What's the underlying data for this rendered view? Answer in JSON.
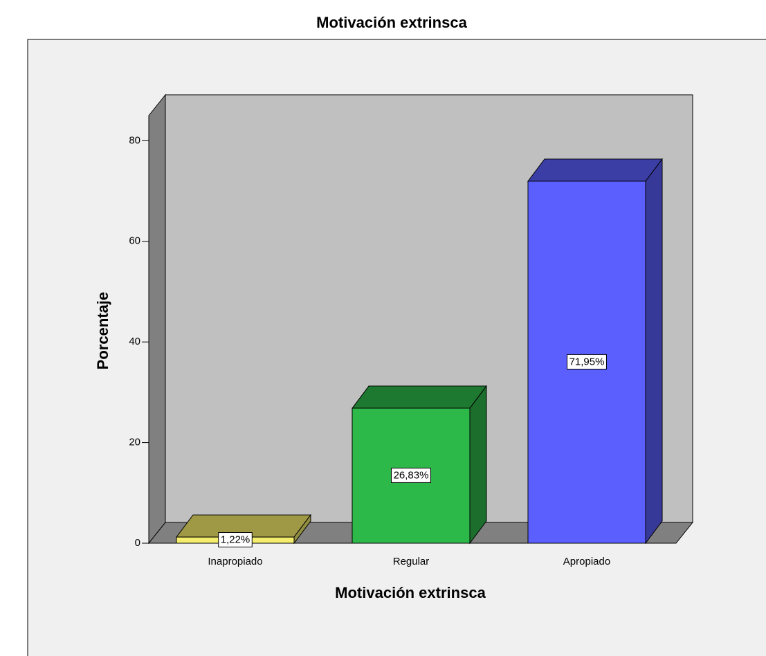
{
  "chart_data": {
    "type": "bar3d",
    "title": "Motivación extrinsca",
    "x_label": "Motivación extrinsca",
    "y_label": "Porcentaje",
    "categories": [
      "Inapropiado",
      "Regular",
      "Apropiado"
    ],
    "values": [
      1.22,
      26.83,
      71.95
    ],
    "value_labels": [
      "1,22%",
      "26,83%",
      "71,95%"
    ],
    "colors": [
      "#f4ec6c",
      "#2db84a",
      "#5b5ffe"
    ],
    "ylim": [
      0,
      85
    ],
    "yticks": [
      0,
      20,
      40,
      60,
      80
    ]
  }
}
